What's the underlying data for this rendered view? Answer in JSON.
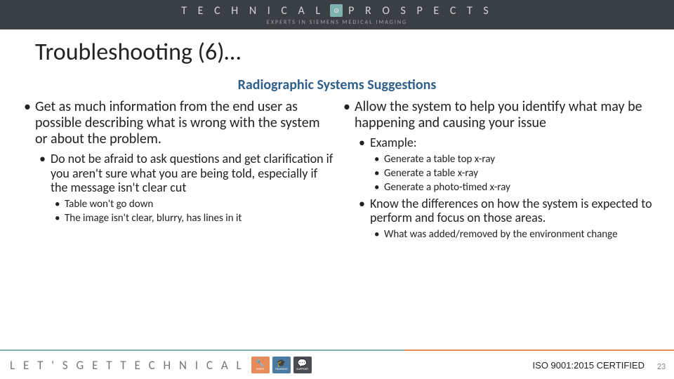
{
  "header": {
    "brand_left": "T E C H N I C A L",
    "brand_right": "P R O S P E C T S",
    "brand_sub": "EXPERTS IN SIEMENS MEDICAL IMAGING",
    "brand_icon_glyph": "⊙"
  },
  "title": "Troubleshooting (6)…",
  "subtitle": "Radiographic Systems Suggestions",
  "subtitle_color": "#2f5f8a",
  "left_col": {
    "item1": "Get as much information from the end user as possible describing what is wrong with the system or about the problem.",
    "item1_sub1": "Do not be afraid to ask questions and get clarification if you aren't sure what you are being told, especially if the message isn't clear cut",
    "item1_sub1_a": "Table won't go down",
    "item1_sub1_b": "The image isn't clear, blurry, has lines in it"
  },
  "right_col": {
    "item1": "Allow the system to help you identify what may be happening and causing your issue",
    "item1_sub1": "Example:",
    "item1_sub1_a": "Generate a table top x-ray",
    "item1_sub1_b": "Generate a table x-ray",
    "item1_sub1_c": "Generate a photo-timed x-ray",
    "item1_sub2": "Know the differences on how the system is expected to perform and focus on those areas.",
    "item1_sub2_a": "What was added/removed by the environment change"
  },
  "footer": {
    "tagline": "L E T ' S   G E T   T E C H N I C A L",
    "icon1_label": "PARTS",
    "icon2_label": "TRAINING",
    "icon3_label": "SUPPORT",
    "cert": "ISO 9001:2015 CERTIFIED",
    "page": "23",
    "divider_colors": [
      "#7fb3b0",
      "#e88b5a"
    ]
  },
  "colors": {
    "header_bg": "#3a3f44",
    "text": "#222222",
    "muted": "#888888"
  }
}
